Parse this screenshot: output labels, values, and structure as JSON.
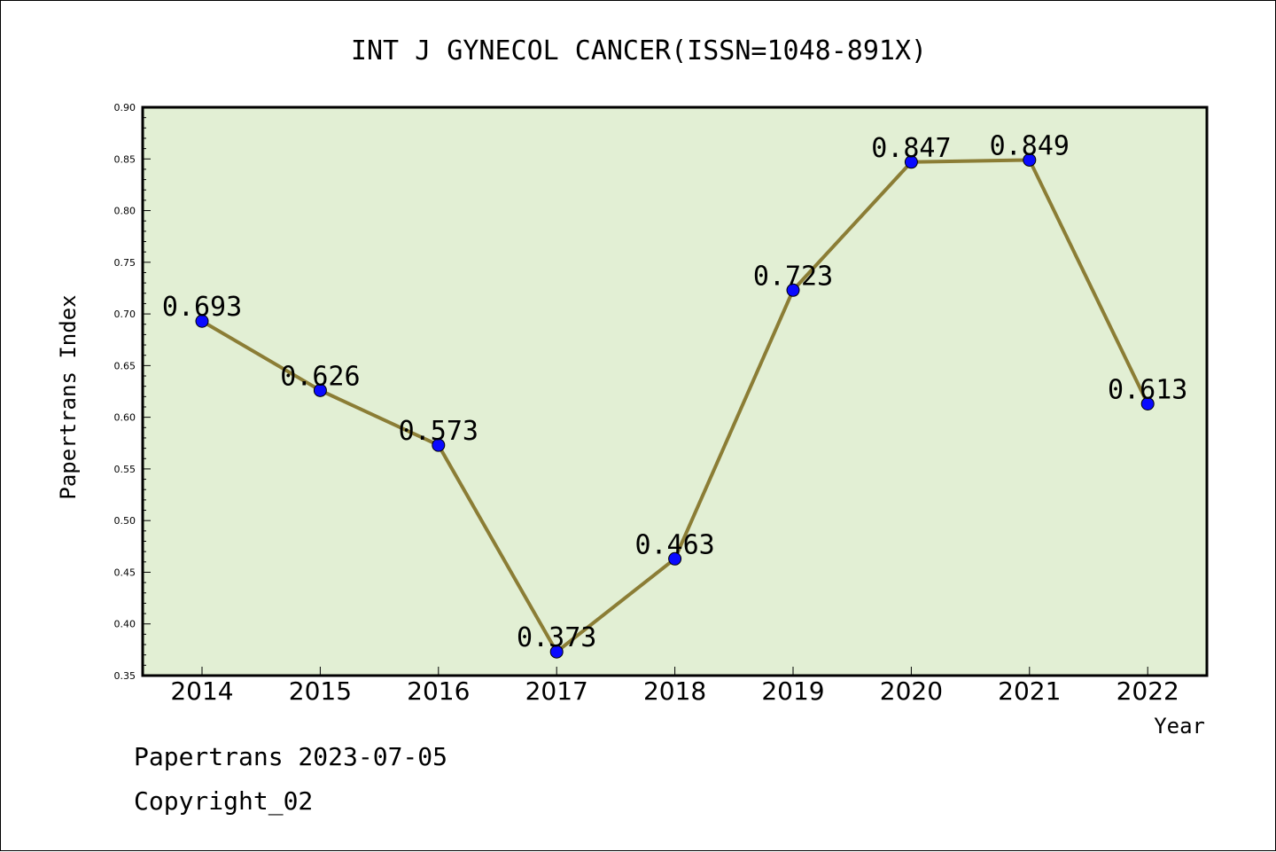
{
  "chart_data": {
    "type": "line",
    "title": "INT J GYNECOL CANCER(ISSN=1048-891X)",
    "xlabel": "Year",
    "ylabel": "Papertrans Index",
    "categories": [
      "2014",
      "2015",
      "2016",
      "2017",
      "2018",
      "2019",
      "2020",
      "2021",
      "2022"
    ],
    "values": [
      0.693,
      0.626,
      0.573,
      0.373,
      0.463,
      0.723,
      0.847,
      0.849,
      0.613
    ],
    "data_labels": [
      "0.693",
      "0.626",
      "0.573",
      "0.373",
      "0.463",
      "0.723",
      "0.847",
      "0.849",
      "0.613"
    ],
    "ylim": [
      0.35,
      0.9
    ],
    "yticks": [
      "0.35",
      "0.40",
      "0.45",
      "0.50",
      "0.55",
      "0.60",
      "0.65",
      "0.70",
      "0.75",
      "0.80",
      "0.85",
      "0.90"
    ],
    "grid": false,
    "legend": "none",
    "colors": {
      "plot_background": "#e2efd4",
      "line": "#8b7d35",
      "marker": "#0a0aff",
      "axis": "#000000"
    }
  },
  "footer": {
    "line1": "Papertrans 2023-07-05",
    "line2": "Copyright_02"
  }
}
